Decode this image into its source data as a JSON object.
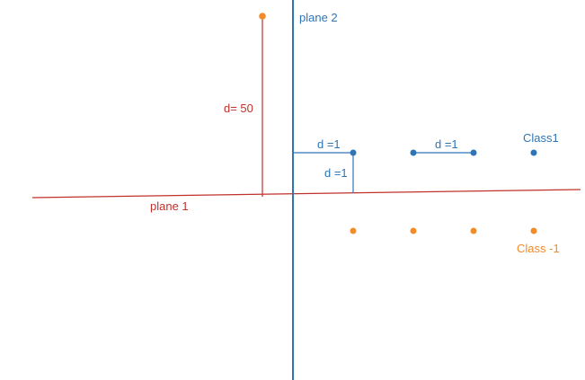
{
  "colors": {
    "background": "#ffffff",
    "plane1": "#c0312b",
    "plane2": "#2e75b6",
    "class1": "#2e75b6",
    "class_neg1": "#f28c28"
  },
  "labels": {
    "plane1": "plane 1",
    "plane2": "plane 2",
    "class1": "Class1",
    "class_neg1": "Class -1",
    "d50": "d= 50",
    "d1_horizontal_left": "d =1",
    "d1_vertical": "d =1",
    "d1_horizontal_right": "d =1"
  },
  "points": {
    "class1": {
      "label": "Class1",
      "color": "#2e75b6",
      "count": 4
    },
    "class_neg1_row": {
      "label": "Class -1",
      "color": "#f28c28",
      "count": 4
    },
    "outlier": {
      "class": "Class -1",
      "color": "#f28c28",
      "count": 1
    }
  }
}
